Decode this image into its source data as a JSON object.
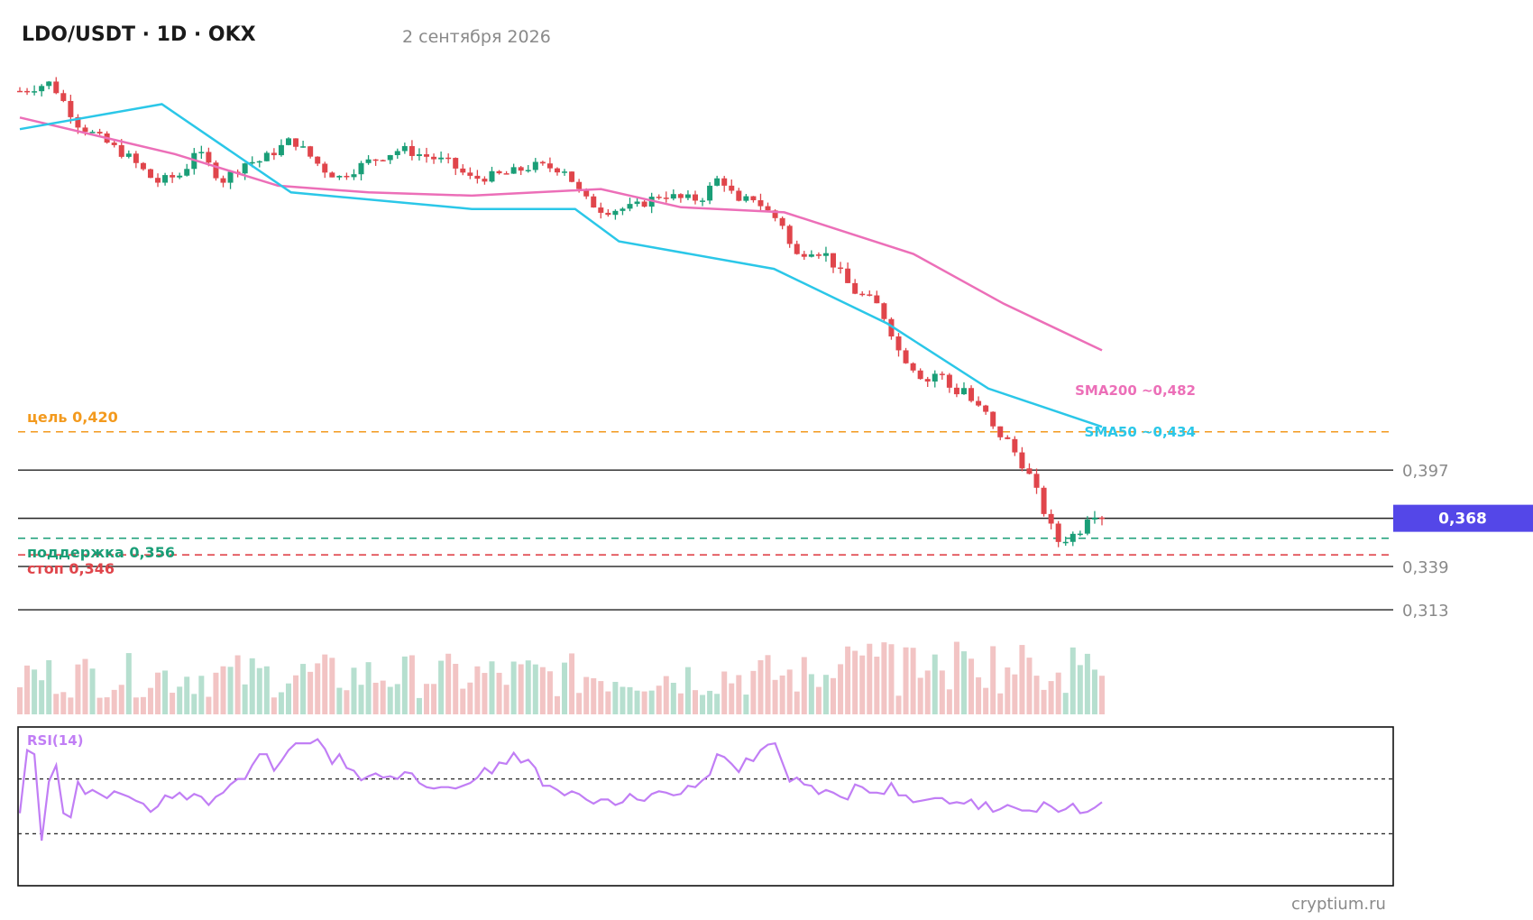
{
  "header": {
    "title": "LDO/USDT · 1D · OKX",
    "date": "2 сентября 2026"
  },
  "watermark": "cryptium.ru",
  "colors": {
    "up": "#1a9e77",
    "down": "#e0454b",
    "up_volume": "#b6dfcf",
    "down_volume": "#f2c4c4",
    "sma50": "#2bc7e8",
    "sma200": "#ec6fb8",
    "target": "#f39a1e",
    "support": "#1a9e77",
    "stop": "#e0454b",
    "current_badge": "#5447e8",
    "rsi": "#c17ef5"
  },
  "chart_data": {
    "type": "candlestick",
    "price_range": [
      0.3,
      0.62
    ],
    "annotations": {
      "target": {
        "label": "цель 0,420",
        "value": 0.42
      },
      "support": {
        "label": "поддержка 0,356",
        "value": 0.356
      },
      "stop": {
        "label": "стоп 0,346",
        "value": 0.346
      }
    },
    "levels": [
      {
        "label": "0,397",
        "value": 0.397
      },
      {
        "label": "0,339",
        "value": 0.339
      },
      {
        "label": "0,313",
        "value": 0.313
      }
    ],
    "current": {
      "label": "0,368",
      "value": 0.368
    },
    "sma_labels": {
      "sma200": "SMA200 ~0,482",
      "sma50": "SMA50 ~0,434"
    },
    "sma50": [
      [
        0,
        0.6,
        0.602
      ],
      [
        55,
        0.62,
        0.617
      ],
      [
        105,
        0.77,
        0.564
      ],
      [
        175,
        0.9,
        0.554
      ],
      [
        215,
        1.0,
        0.554
      ],
      [
        232,
        1.1,
        0.5345
      ],
      [
        292,
        1.19,
        0.518
      ],
      [
        336,
        1.27,
        0.485
      ],
      [
        375,
        1.35,
        0.446
      ],
      [
        419,
        1.4,
        0.423
      ]
    ],
    "sma200": [
      [
        0,
        0.6,
        0.609
      ],
      [
        60,
        0.65,
        0.587
      ],
      [
        100,
        0.7,
        0.568
      ],
      [
        135,
        0.78,
        0.564
      ],
      [
        175,
        0.86,
        0.562
      ],
      [
        225,
        0.93,
        0.566
      ],
      [
        256,
        1.02,
        0.555
      ],
      [
        296,
        1.1,
        0.552
      ],
      [
        346,
        1.18,
        0.527
      ],
      [
        381,
        1.26,
        0.497
      ],
      [
        419,
        1.33,
        0.469
      ]
    ],
    "rsi": {
      "label": "RSI(14)",
      "levels": [
        70,
        30
      ],
      "values": [
        45,
        91,
        88,
        25,
        68,
        80,
        45,
        42,
        68,
        59,
        62,
        59,
        56,
        61,
        59,
        57,
        54,
        52,
        46,
        50,
        58,
        56,
        60,
        55,
        59,
        57,
        51,
        57,
        60,
        66,
        70,
        70,
        80,
        88,
        88,
        76,
        83,
        91,
        96,
        96,
        96,
        99,
        92,
        81,
        88,
        78,
        76,
        69,
        72,
        74,
        71,
        72,
        70,
        75,
        74,
        67,
        64,
        63,
        64,
        64,
        63,
        65,
        67,
        71,
        78,
        74,
        82,
        81,
        89,
        82,
        84,
        78,
        65,
        65,
        62,
        58,
        61,
        59,
        55,
        52,
        55,
        55,
        51,
        53,
        59,
        55,
        54,
        59,
        61,
        60,
        58,
        59,
        65,
        64,
        69,
        73,
        88,
        86,
        81,
        75,
        85,
        83,
        91,
        95,
        96,
        82,
        68,
        71,
        66,
        65,
        59,
        62,
        60,
        57,
        55,
        66,
        64,
        60,
        60,
        59,
        67,
        58,
        58,
        53,
        54,
        55,
        56,
        56,
        52,
        53,
        52,
        55,
        48,
        53,
        46,
        48,
        51,
        49,
        47,
        47,
        46,
        53,
        50,
        46,
        48,
        52,
        45,
        46,
        49,
        53,
        53,
        50,
        49,
        51,
        47,
        40,
        48,
        42,
        41,
        37,
        36,
        39,
        40,
        41,
        41,
        37,
        38,
        39,
        42,
        38,
        38,
        37,
        36,
        40,
        46,
        44,
        40,
        41,
        45,
        41,
        44,
        47,
        46,
        46,
        47,
        50,
        45,
        50,
        49,
        47,
        45,
        45,
        50,
        46,
        45,
        48,
        46,
        49,
        47,
        51,
        45,
        47,
        42,
        45,
        43,
        44,
        46,
        42,
        46,
        45,
        44,
        44,
        40,
        46,
        48,
        44,
        44,
        41,
        47,
        45,
        47,
        45,
        40,
        40,
        42,
        41,
        40,
        43,
        42,
        43,
        44,
        44,
        48,
        48,
        48,
        45,
        43,
        49,
        49,
        40,
        44,
        44,
        46,
        46,
        45,
        47,
        49,
        47,
        49,
        44,
        43,
        43,
        42,
        44,
        42,
        41,
        44,
        42,
        38,
        40,
        39,
        37,
        39,
        42,
        41,
        40,
        39,
        38,
        37,
        38,
        41,
        39,
        40,
        39,
        40,
        37,
        42,
        40,
        38,
        36,
        39,
        41,
        42,
        40,
        41,
        40,
        39,
        43,
        40,
        36,
        39,
        40,
        39,
        38,
        41,
        42,
        39,
        34,
        34,
        37,
        39,
        36,
        36,
        35,
        34,
        36,
        38,
        39,
        35,
        39,
        33,
        34,
        33,
        38,
        38,
        37,
        43,
        40,
        34,
        34,
        36,
        33,
        34,
        38,
        40,
        36,
        34,
        34,
        33,
        37,
        39,
        40,
        38,
        36,
        37,
        35,
        35,
        35,
        34,
        34,
        35,
        35,
        38,
        35,
        36,
        38,
        41,
        44,
        45,
        42,
        40,
        36,
        44,
        45,
        42,
        38,
        43,
        42,
        40,
        41,
        40,
        41,
        40,
        40,
        42,
        42,
        45,
        43,
        41,
        43,
        42,
        42,
        41,
        42,
        41,
        42,
        44,
        42,
        42,
        40,
        41,
        41,
        42,
        41,
        43,
        43,
        41,
        42,
        41,
        42,
        41,
        40,
        42,
        41,
        42,
        41,
        43,
        43,
        41,
        41,
        41,
        41,
        42,
        43,
        42,
        44,
        43,
        42,
        41,
        40,
        41,
        41,
        42,
        43,
        44,
        43,
        42,
        41,
        42,
        41,
        40,
        41,
        40,
        39,
        40,
        42,
        41,
        41,
        40,
        39,
        40,
        39,
        40,
        44,
        42,
        41,
        42,
        43,
        42
      ]
    }
  }
}
